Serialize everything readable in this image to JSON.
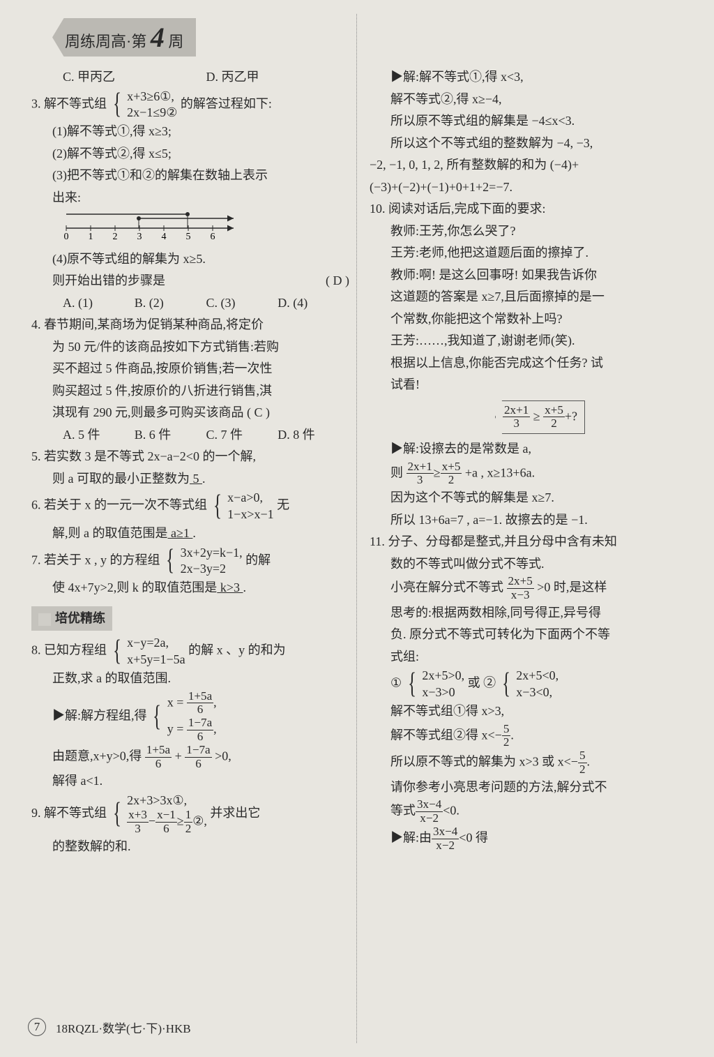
{
  "header": {
    "series": "周练周高",
    "sep": "·",
    "unit": "第",
    "num": "4",
    "suffix": "周"
  },
  "footer": {
    "page": "7",
    "code": "18RQZL·数学(七·下)·HKB"
  },
  "sectionHeading": "培优精练",
  "left": {
    "q2": {
      "optC": "C. 甲丙乙",
      "optD": "D. 丙乙甲"
    },
    "q3": {
      "stem1": "3. 解不等式组",
      "sysTop": "x+3≥6①,",
      "sysBot": "2x−1≤9②",
      "stem2": "的解答过程如下:",
      "s1": "(1)解不等式①,得 x≥3;",
      "s2": "(2)解不等式②,得 x≤5;",
      "s3a": "(3)把不等式①和②的解集在数轴上表示",
      "s3b": "出来:",
      "ticks": [
        "0",
        "1",
        "2",
        "3",
        "4",
        "5",
        "6"
      ],
      "s4": "(4)原不等式组的解集为 x≥5.",
      "q": "则开始出错的步骤是",
      "ans": "(  D  )",
      "oA": "A. (1)",
      "oB": "B. (2)",
      "oC": "C. (3)",
      "oD": "D. (4)"
    },
    "q4": {
      "l1": "4. 春节期间,某商场为促销某种商品,将定价",
      "l2": "为 50 元/件的该商品按如下方式销售:若购",
      "l3": "买不超过 5 件商品,按原价销售;若一次性",
      "l4": "购买超过 5 件,按原价的八折进行销售,淇",
      "l5": "淇现有 290 元,则最多可购买该商品 (  C  )",
      "oA": "A. 5 件",
      "oB": "B. 6 件",
      "oC": "C. 7 件",
      "oD": "D. 8 件"
    },
    "q5": {
      "l1": "5. 若实数 3 是不等式 2x−a−2<0 的一个解,",
      "l2a": "则 a 可取的最小正整数为",
      "blank": "  5  ",
      "l2b": "."
    },
    "q6": {
      "l1a": "6. 若关于 x 的一元一次不等式组",
      "sysTop": "x−a>0,",
      "sysBot": "1−x>x−1",
      "l1b": "无",
      "l2a": "解,则 a 的取值范围是",
      "blank": "  a≥1  ",
      "l2b": "."
    },
    "q7": {
      "l1a": "7. 若关于 x , y 的方程组",
      "sysTop": "3x+2y=k−1,",
      "sysBot": "2x−3y=2",
      "l1b": "的解",
      "l2a": "使 4x+7y>2,则 k 的取值范围是",
      "blank": "  k>3  ",
      "l2b": "."
    },
    "q8": {
      "l1a": "8. 已知方程组",
      "sysTop": "x−y=2a,",
      "sysBot": "x+5y=1−5a",
      "l1b": "的解 x 、y 的和为",
      "l2": "正数,求 a 的取值范围.",
      "sol_lead": "▶解:解方程组,得",
      "solTop_a": "x =",
      "solTop_n": "1+5a",
      "solTop_d": "6",
      "solTop_b": ",",
      "solBot_a": "y =",
      "solBot_n": "1−7a",
      "solBot_d": "6",
      "solBot_b": ",",
      "l3a": "由题意,x+y>0,得",
      "f1n": "1+5a",
      "f1d": "6",
      "plus": "+",
      "f2n": "1−7a",
      "f2d": "6",
      "l3b": ">0,",
      "l4": "解得 a<1."
    },
    "q9": {
      "l1a": "9. 解不等式组",
      "sysTop": "2x+3>3x①,",
      "sysBot_a": "",
      "sb_f1n": "x+3",
      "sb_f1d": "3",
      "sb_minus": "−",
      "sb_f2n": "x−1",
      "sb_f2d": "6",
      "sb_ge": "≥",
      "sb_f3n": "1",
      "sb_f3d": "2",
      "sb_tail": "②,",
      "l1b": "并求出它",
      "l2": "的整数解的和."
    }
  },
  "right": {
    "sol9": {
      "l1": "▶解:解不等式①,得 x<3,",
      "l2": "解不等式②,得 x≥−4,",
      "l3": "所以原不等式组的解集是 −4≤x<3.",
      "l4": "所以这个不等式组的整数解为 −4, −3,",
      "l5": "−2, −1, 0, 1, 2, 所有整数解的和为 (−4)+",
      "l6": "(−3)+(−2)+(−1)+0+1+2=−7."
    },
    "q10": {
      "l1": "10. 阅读对话后,完成下面的要求:",
      "l2": "教师:王芳,你怎么哭了?",
      "l3": "王芳:老师,他把这道题后面的擦掉了.",
      "l4": "教师:啊! 是这么回事呀! 如果我告诉你",
      "l5": "这道题的答案是 x≥7,且后面擦掉的是一",
      "l6": "个常数,你能把这个常数补上吗?",
      "l7": "王芳:……,我知道了,谢谢老师(笑).",
      "l8": "根据以上信息,你能否完成这个任务? 试",
      "l9": "试看!",
      "box_f1n": "2x+1",
      "box_f1d": "3",
      "box_ge": " ≥ ",
      "box_f2n": "x+5",
      "box_f2d": "2",
      "box_tail": "+?",
      "s1": "▶解:设擦去的是常数是 a,",
      "s2a": "则",
      "s2_f1n": "2x+1",
      "s2_f1d": "3",
      "s2_ge": "≥",
      "s2_f2n": "x+5",
      "s2_f2d": "2",
      "s2b": "+a , x≥13+6a.",
      "s3": "因为这个不等式的解集是 x≥7.",
      "s4": "所以 13+6a=7 , a=−1. 故擦去的是 −1."
    },
    "q11": {
      "l1": "11. 分子、分母都是整式,并且分母中含有未知",
      "l2": "数的不等式叫做分式不等式.",
      "l3a": "小亮在解分式不等式",
      "f1n": "2x+5",
      "f1d": "x−3",
      "l3b": ">0 时,是这样",
      "l4": "思考的:根据两数相除,同号得正,异号得",
      "l5": "负. 原分式不等式可转化为下面两个不等",
      "l6": "式组:",
      "g1_lead": "①",
      "g1_top": "2x+5>0,",
      "g1_bot": "x−3>0",
      "or": "或 ②",
      "g2_top": "2x+5<0,",
      "g2_bot": "x−3<0,",
      "l7": "解不等式组①得 x>3,",
      "l8a": "解不等式组②得 x<−",
      "f2n": "5",
      "f2d": "2",
      "l8b": ".",
      "l9a": "所以原不等式的解集为 x>3 或 x<−",
      "f3n": "5",
      "f3d": "2",
      "l9b": ".",
      "l10": "请你参考小亮思考问题的方法,解分式不",
      "l11a": "等式",
      "f4n": "3x−4",
      "f4d": "x−2",
      "l11b": "<0.",
      "s1a": "▶解:由",
      "sf1n": "3x−4",
      "sf1d": "x−2",
      "s1b": "<0 得"
    }
  }
}
